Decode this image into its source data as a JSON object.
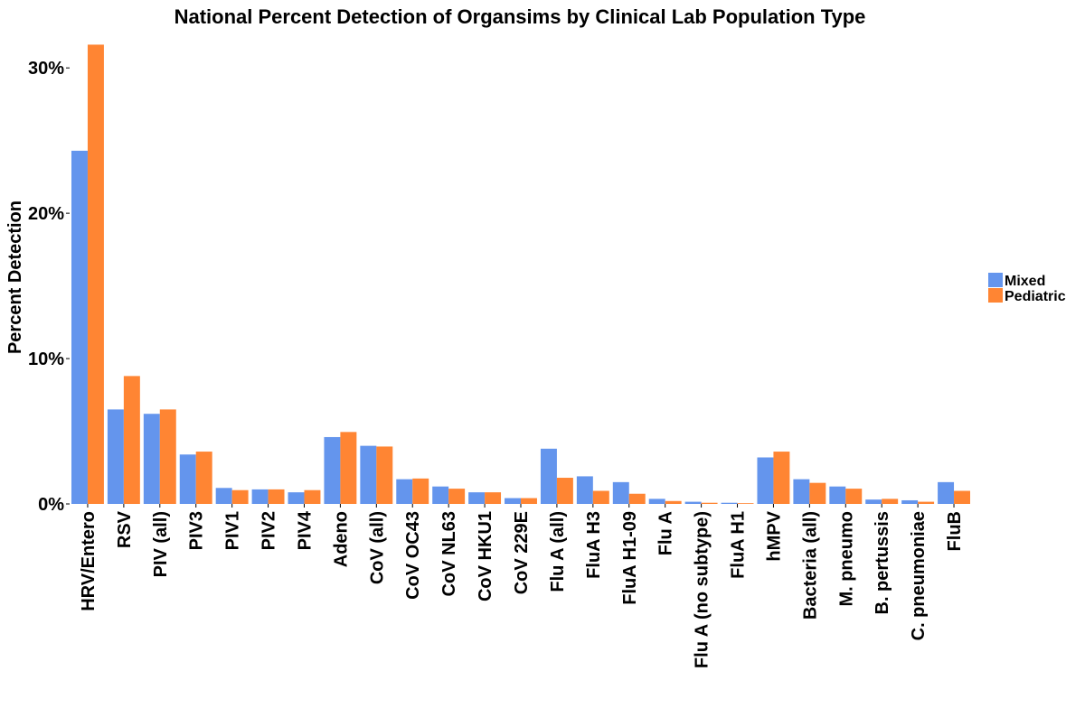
{
  "chart_data": {
    "type": "bar",
    "title": "National Percent Detection of Organsims by Clinical Lab Population Type",
    "xlabel": "",
    "ylabel": "Percent Detection",
    "ylim": [
      0,
      32
    ],
    "yticks": [
      0,
      10,
      20,
      30
    ],
    "ytick_labels": [
      "0%",
      "10%",
      "20%",
      "30%"
    ],
    "grid": false,
    "legend_position": "right",
    "categories": [
      "HRV/Entero",
      "RSV",
      "PIV (all)",
      "PIV3",
      "PIV1",
      "PIV2",
      "PIV4",
      "Adeno",
      "CoV (all)",
      "CoV OC43",
      "CoV NL63",
      "CoV HKU1",
      "CoV 229E",
      "Flu A (all)",
      "FluA H3",
      "FluA H1-09",
      "Flu A",
      "Flu A (no subtype)",
      "FluA H1",
      "hMPV",
      "Bacteria (all)",
      "M. pneumo",
      "B. pertussis",
      "C. pneumoniae",
      "FluB"
    ],
    "series": [
      {
        "name": "Mixed",
        "color": "#6495ED",
        "values": [
          24.3,
          6.5,
          6.2,
          3.4,
          1.1,
          1.0,
          0.8,
          4.6,
          4.0,
          1.7,
          1.2,
          0.8,
          0.4,
          3.8,
          1.9,
          1.5,
          0.35,
          0.15,
          0.08,
          3.2,
          1.7,
          1.2,
          0.3,
          0.25,
          1.5
        ]
      },
      {
        "name": "Pediatric",
        "color": "#FF8533",
        "values": [
          31.6,
          8.8,
          6.5,
          3.6,
          0.95,
          1.0,
          0.95,
          4.95,
          3.95,
          1.75,
          1.05,
          0.8,
          0.4,
          1.8,
          0.9,
          0.7,
          0.2,
          0.08,
          0.05,
          3.6,
          1.45,
          1.05,
          0.35,
          0.15,
          0.9
        ]
      }
    ]
  }
}
